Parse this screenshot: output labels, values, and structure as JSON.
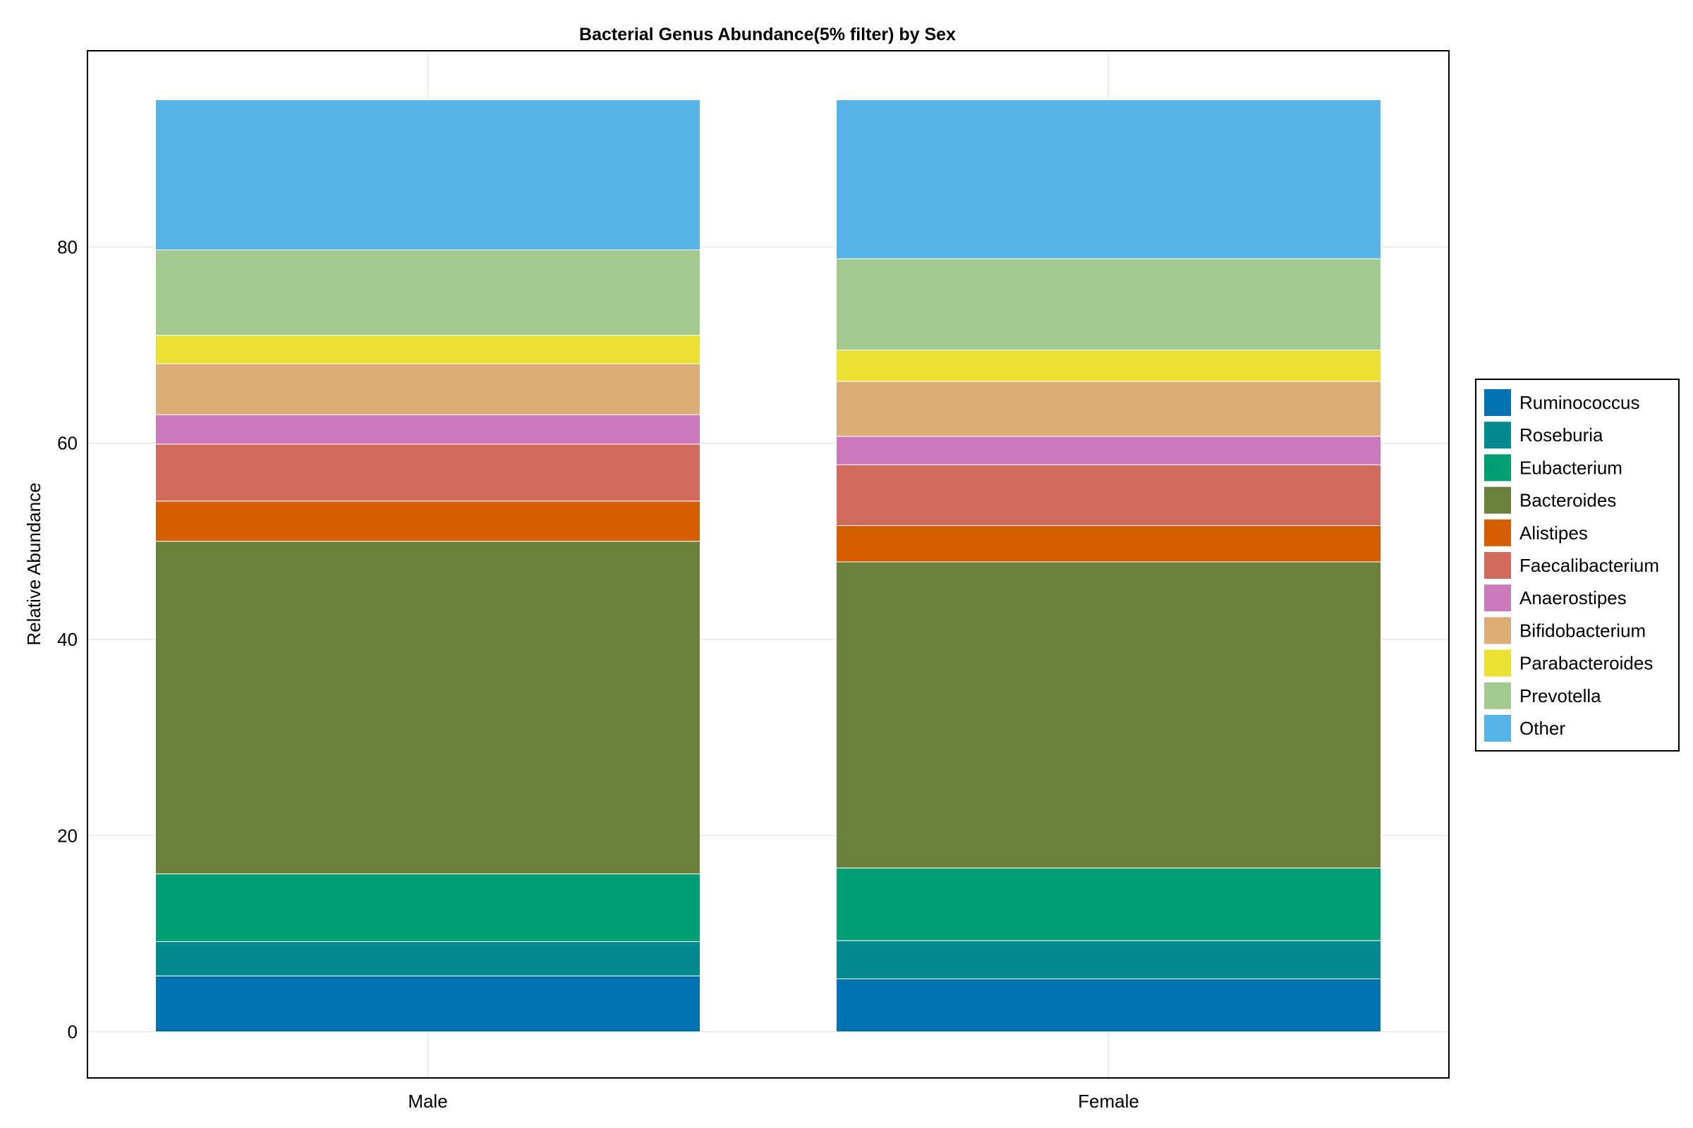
{
  "chart_data": {
    "type": "bar",
    "stacked": true,
    "title": "Bacterial Genus Abundance(5% filter) by Sex",
    "xlabel": "",
    "ylabel": "Relative Abundance",
    "categories": [
      "Male",
      "Female"
    ],
    "ylim": [
      -4.7,
      100
    ],
    "yticks": [
      0,
      20,
      40,
      60,
      80
    ],
    "grid": true,
    "legend_position": "right",
    "series": [
      {
        "name": "Ruminococcus",
        "color": "#0072B2",
        "values": [
          5.7,
          5.4
        ]
      },
      {
        "name": "Roseburia",
        "color": "#00898F",
        "values": [
          3.5,
          3.9
        ]
      },
      {
        "name": "Eubacterium",
        "color": "#009E73",
        "values": [
          6.9,
          7.4
        ]
      },
      {
        "name": "Bacteroides",
        "color": "#6B803A",
        "values": [
          33.9,
          31.2
        ]
      },
      {
        "name": "Alistipes",
        "color": "#D55E00",
        "values": [
          4.1,
          3.7
        ]
      },
      {
        "name": "Faecalibacterium",
        "color": "#D16B5D",
        "values": [
          5.8,
          6.2
        ]
      },
      {
        "name": "Anaerostipes",
        "color": "#CC79BC",
        "values": [
          3.0,
          2.9
        ]
      },
      {
        "name": "Bifidobacterium",
        "color": "#DBAC76",
        "values": [
          5.2,
          5.6
        ]
      },
      {
        "name": "Parabacteroides",
        "color": "#EBE133",
        "values": [
          2.9,
          3.2
        ]
      },
      {
        "name": "Prevotella",
        "color": "#A2CA91",
        "values": [
          8.7,
          9.3
        ]
      },
      {
        "name": "Other",
        "color": "#56B4E8",
        "values": [
          15.3,
          16.2
        ]
      }
    ]
  }
}
